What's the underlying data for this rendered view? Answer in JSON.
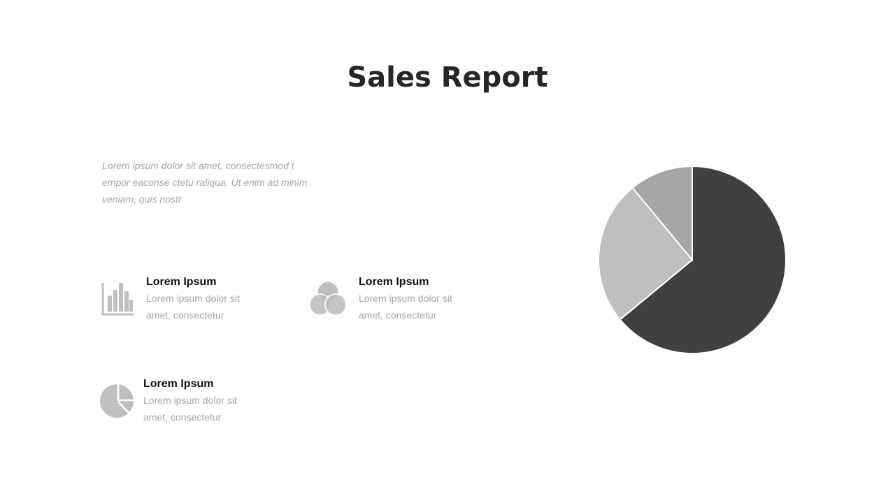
{
  "title": "Sales Report",
  "intro": "Lorem ipsum dolor sit amet, consectesmod t empor eaconse ctetu raliqua. Ut enim ad minim veniam, quis nostr",
  "items": [
    {
      "heading": "Lorem Ipsum",
      "text": "Lorem ipsum dolor sit amet, consectetur"
    },
    {
      "heading": "Lorem Ipsum",
      "text": "Lorem ipsum dolor sit amet, consectetur"
    },
    {
      "heading": "Lorem Ipsum",
      "text": "Lorem ipsum dolor sit amet, consectetur"
    }
  ],
  "chart_data": {
    "type": "pie",
    "values": [
      64,
      25,
      11
    ],
    "colors": [
      "#404040",
      "#bfbfbf",
      "#a6a6a6"
    ]
  }
}
